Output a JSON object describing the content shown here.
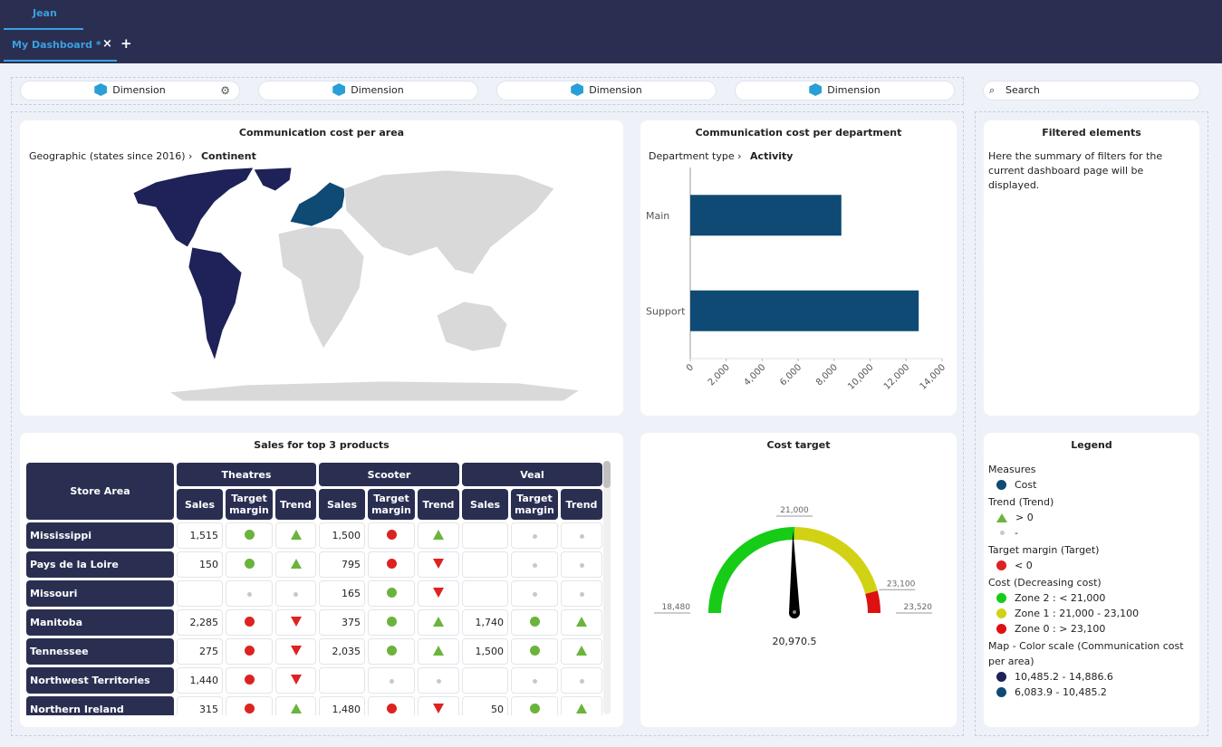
{
  "header": {
    "user_tab": "Jean",
    "dashboard_tab": "My Dashboard *",
    "close": "×",
    "add": "+"
  },
  "toolbar": {
    "dimensions": [
      "Dimension",
      "Dimension",
      "Dimension",
      "Dimension"
    ],
    "search": "Search"
  },
  "map_panel": {
    "title": "Communication cost per area",
    "breadcrumb": [
      "Geographic (states since 2016)",
      "Continent"
    ]
  },
  "chart_data": {
    "type": "bar",
    "orientation": "horizontal",
    "title": "Communication cost per department",
    "breadcrumb": [
      "Department type",
      "Activity"
    ],
    "categories": [
      "Main",
      "Support"
    ],
    "values": [
      8400,
      12700
    ],
    "color": "#0e4a74",
    "xlim": [
      0,
      14000
    ],
    "xticks": [
      0,
      {
        "value": 2000,
        "label": "2,000"
      },
      {
        "value": 4000,
        "label": "4,000"
      },
      {
        "value": 6000,
        "label": "6,000"
      },
      {
        "value": 8000,
        "label": "8,000"
      },
      {
        "value": 10000,
        "label": "10,000"
      },
      {
        "value": 12000,
        "label": "12,000"
      },
      {
        "value": 14000,
        "label": "14,000"
      }
    ]
  },
  "filters_panel": {
    "title": "Filtered elements",
    "text": "Here the summary of filters for the current dashboard page will be displayed."
  },
  "table": {
    "title": "Sales for top 3 products",
    "header": [
      "Store Area",
      "Theatres",
      "Scooter",
      "Veal"
    ],
    "subheader": [
      "Sales",
      "Target margin",
      "Trend"
    ],
    "rows": [
      {
        "area": "Mississippi",
        "theatres": "1,515",
        "scooter": "1,500"
      },
      {
        "area": "Pays de la Loire",
        "theatres": "150",
        "scooter": "795"
      },
      {
        "area": "Missouri",
        "scooter": "165"
      },
      {
        "area": "Manitoba",
        "theatres": "2,285",
        "scooter": "375",
        "veal": "1,740"
      },
      {
        "area": "Tennessee",
        "theatres": "275",
        "scooter": "2,035",
        "veal": "1,500"
      },
      {
        "area": "Northwest Territories",
        "theatres": "1,440"
      },
      {
        "area": "Northern Ireland",
        "theatres": "315",
        "scooter": "1,480",
        "veal": "50"
      }
    ]
  },
  "gauge": {
    "title": "Cost target",
    "min": {
      "value": 18480,
      "label": "18,480"
    },
    "max": {
      "value": 23520,
      "label": "23,520"
    },
    "thresholds": [
      {
        "value": 21000,
        "label": "21,000"
      },
      {
        "value": 23100,
        "label": "23,100"
      }
    ],
    "value": {
      "value": 20970.5,
      "label": "20,970.5"
    },
    "colors": [
      "#16cc16",
      "#d2d214",
      "#dd1111"
    ]
  },
  "legend": {
    "title": "Legend",
    "groups": [
      {
        "title": "Measures",
        "items": [
          {
            "label": "Cost",
            "color": "#0e4a74",
            "shape": "circle"
          }
        ]
      },
      {
        "title": "Trend (Trend)",
        "items": [
          {
            "label": "> 0",
            "color": "#6ab43c",
            "shape": "triangle"
          },
          {
            "label": "-",
            "color": "#c8c8c8",
            "shape": "dot"
          }
        ]
      },
      {
        "title": "Target margin (Target)",
        "items": [
          {
            "label": "< 0",
            "color": "#dd2222",
            "shape": "circle"
          }
        ]
      },
      {
        "title": "Cost (Decreasing cost)",
        "items": [
          {
            "label": "Zone 2 : < 21,000",
            "color": "#16cc16",
            "shape": "circle"
          },
          {
            "label": "Zone 1 : 21,000 - 23,100",
            "color": "#d2d214",
            "shape": "circle"
          },
          {
            "label": "Zone 0 : > 23,100",
            "color": "#dd1111",
            "shape": "circle"
          }
        ]
      },
      {
        "title": "Map - Color scale (Communication cost per area)",
        "items": [
          {
            "label": "10,485.2 - 14,886.6",
            "color": "#1e2258",
            "shape": "circle"
          },
          {
            "label": "6,083.9 - 10,485.2",
            "color": "#0e4a74",
            "shape": "circle"
          }
        ]
      }
    ]
  }
}
